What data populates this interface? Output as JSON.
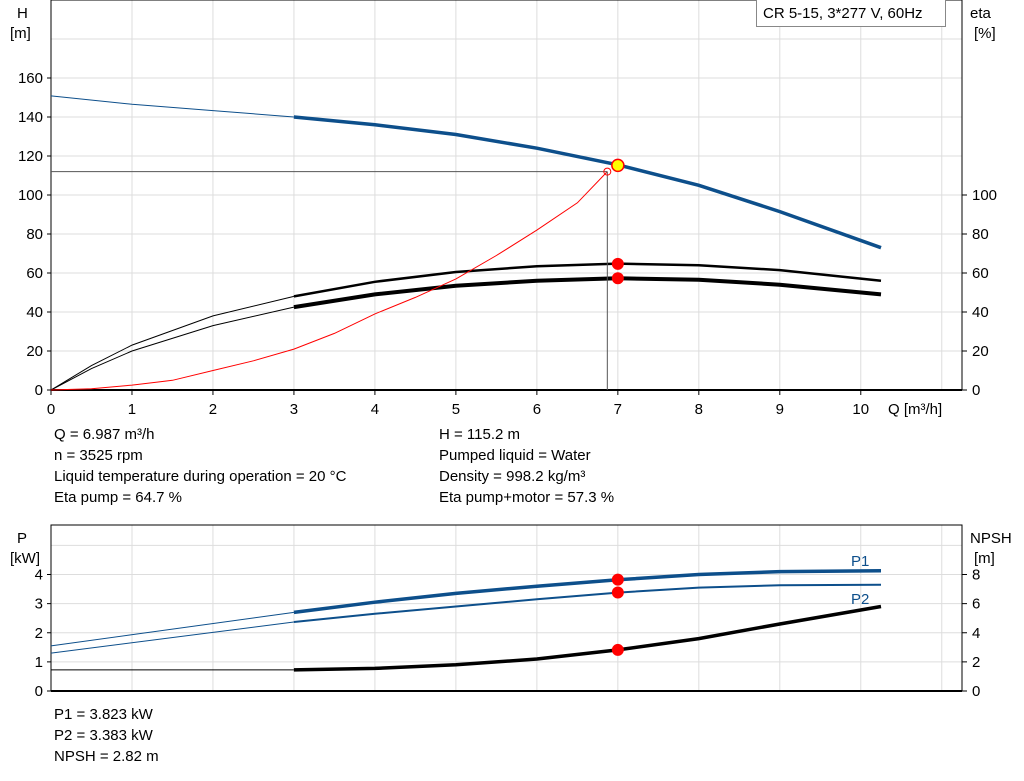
{
  "title": "CR 5-15, 3*277 V, 60Hz",
  "colors": {
    "head": "#0d4f8b",
    "eta": "#000000",
    "system": "#ff0000",
    "power": "#0d4f8b",
    "npsh": "#000000",
    "marker": "#ff0000",
    "operating_point": "#ffff00"
  },
  "chart_data": [
    {
      "type": "line",
      "xlabel": "Q [m³/h]",
      "ylabel_left": "H",
      "ylabel_left_unit": "[m]",
      "ylabel_right": "eta",
      "ylabel_right_unit": "[%]",
      "xlim": [
        0,
        11.25
      ],
      "ylim_left": [
        0,
        200
      ],
      "ylim_right": [
        0,
        200
      ],
      "grid": true,
      "xticks": [
        "0",
        "1",
        "2",
        "3",
        "4",
        "5",
        "6",
        "7",
        "8",
        "9",
        "10"
      ],
      "yticks_left": [
        "0",
        "20",
        "40",
        "60",
        "80",
        "100",
        "120",
        "140",
        "160"
      ],
      "yticks_right": [
        "0",
        "20",
        "40",
        "60",
        "80",
        "100"
      ],
      "series": [
        {
          "id": "head",
          "axis": "left",
          "x": [
            0,
            1,
            2,
            3,
            4,
            5,
            6,
            7,
            8,
            9,
            10.25
          ],
          "y": [
            150.8,
            146.5,
            143.3,
            140,
            136,
            131,
            124,
            115.5,
            105,
            91.5,
            73
          ]
        },
        {
          "id": "eta_pump",
          "axis": "right",
          "x": [
            0,
            0.5,
            1,
            2,
            3,
            4,
            5,
            6,
            7,
            8,
            9,
            10.25
          ],
          "y": [
            0,
            12.5,
            23,
            38,
            48,
            55.5,
            60.5,
            63.5,
            64.8,
            64,
            61.5,
            56
          ]
        },
        {
          "id": "eta_pump_motor",
          "axis": "right",
          "x": [
            0,
            0.5,
            1,
            2,
            3,
            4,
            5,
            6,
            7,
            8,
            9,
            10.25
          ],
          "y": [
            0,
            11,
            20,
            33,
            42.5,
            49,
            53.5,
            56,
            57.3,
            56.5,
            54,
            49
          ]
        },
        {
          "id": "system",
          "axis": "left",
          "x": [
            0,
            0.5,
            1,
            1.5,
            2,
            2.5,
            3,
            3.5,
            4,
            4.5,
            5,
            5.5,
            6,
            6.5,
            6.87
          ],
          "y": [
            0,
            0.6,
            2.5,
            5,
            10,
            15,
            21,
            29,
            39,
            47.5,
            57,
            69,
            82,
            96,
            112
          ]
        }
      ],
      "operating_point": {
        "Q": 7,
        "H": 115.2,
        "eta_pump": 64.7,
        "eta_pump_motor": 57.3
      },
      "duty_point": {
        "Q": 6.87,
        "H": 112
      }
    },
    {
      "type": "line",
      "ylabel_left": "P",
      "ylabel_left_unit": "[kW]",
      "ylabel_right": "NPSH",
      "ylabel_right_unit": "[m]",
      "xlim": [
        0,
        11.25
      ],
      "ylim_left": [
        0,
        5.7
      ],
      "ylim_right": [
        0,
        11.4
      ],
      "grid": true,
      "yticks_left": [
        "0",
        "1",
        "2",
        "3",
        "4"
      ],
      "yticks_right": [
        "0",
        "2",
        "4",
        "6",
        "8"
      ],
      "series": [
        {
          "id": "P1",
          "name": "P1",
          "axis": "left",
          "x": [
            0,
            3,
            4,
            5,
            6,
            7,
            8,
            9,
            10.25
          ],
          "y": [
            1.55,
            2.7,
            3.05,
            3.35,
            3.6,
            3.82,
            4.0,
            4.1,
            4.13
          ]
        },
        {
          "id": "P2",
          "name": "P2",
          "axis": "left",
          "x": [
            0,
            3,
            4,
            5,
            6,
            7,
            8,
            9,
            10.25
          ],
          "y": [
            1.3,
            2.37,
            2.65,
            2.9,
            3.15,
            3.38,
            3.55,
            3.63,
            3.65
          ]
        },
        {
          "id": "NPSH",
          "axis": "right",
          "x": [
            0,
            3,
            4,
            5,
            6,
            7,
            8,
            9,
            10.25
          ],
          "y": [
            1.45,
            1.45,
            1.55,
            1.8,
            2.2,
            2.82,
            3.6,
            4.6,
            5.8
          ]
        }
      ],
      "operating_point": {
        "Q": 7,
        "P1": 3.823,
        "P2": 3.383,
        "NPSH": 2.82
      }
    }
  ],
  "info_top_left": [
    "Q = 6.987 m³/h",
    "n = 3525 rpm",
    "Liquid temperature during operation = 20 °C",
    "Eta pump = 64.7 %"
  ],
  "info_top_right": [
    "H = 115.2 m",
    "Pumped liquid = Water",
    "Density = 998.2 kg/m³",
    "Eta pump+motor = 57.3 %"
  ],
  "info_bottom": [
    "P1 = 3.823 kW",
    "P2 = 3.383 kW",
    "NPSH = 2.82 m"
  ]
}
